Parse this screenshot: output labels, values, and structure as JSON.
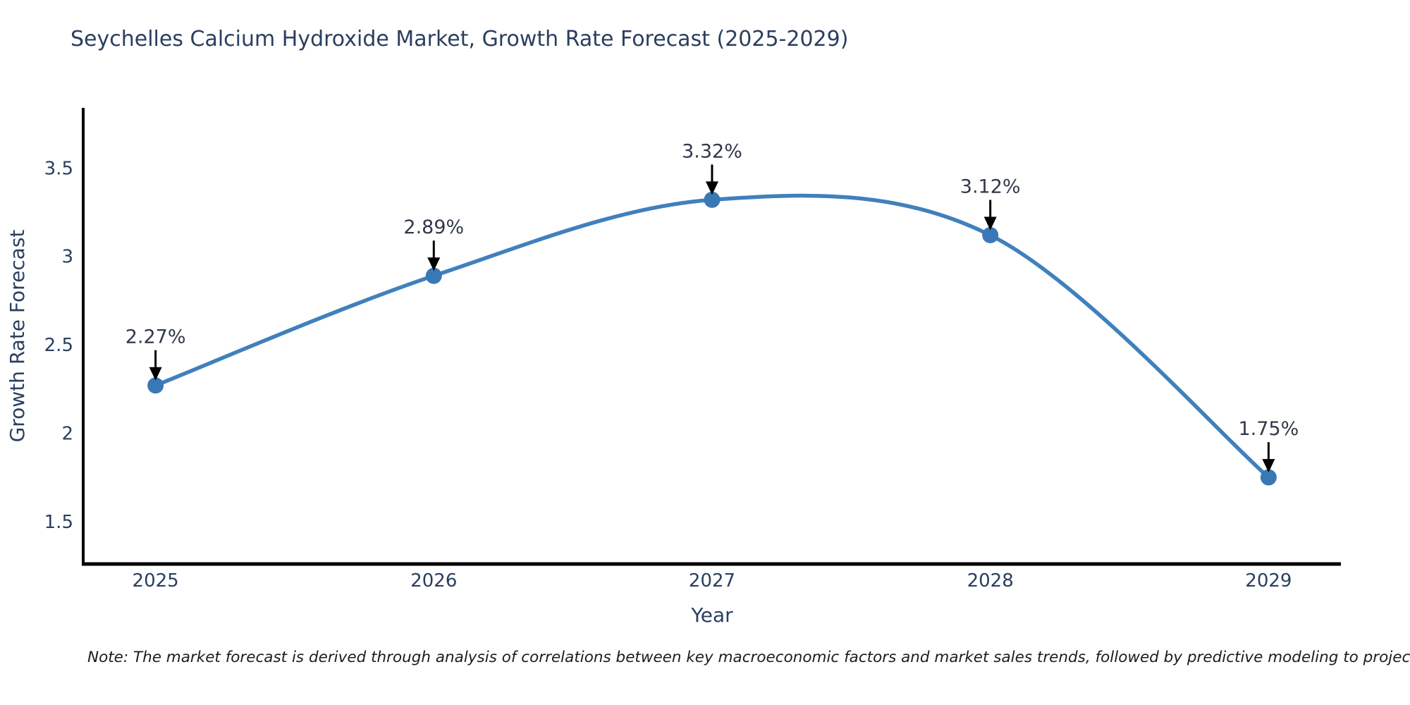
{
  "chart_data": {
    "type": "line",
    "title": "Seychelles Calcium Hydroxide Market, Growth Rate Forecast (2025-2029)",
    "xlabel": "Year",
    "ylabel": "Growth Rate Forecast",
    "x": [
      2025,
      2026,
      2027,
      2028,
      2029
    ],
    "values": [
      2.27,
      2.89,
      3.32,
      3.12,
      1.75
    ],
    "point_labels": [
      "2.27%",
      "2.89%",
      "3.32%",
      "3.12%",
      "1.75%"
    ],
    "xticks": [
      "2025",
      "2026",
      "2027",
      "2028",
      "2029"
    ],
    "yticks": [
      1.5,
      2,
      2.5,
      3,
      3.5
    ],
    "ytick_labels": [
      "1.5",
      "2",
      "2.5",
      "3",
      "3.5"
    ],
    "xlim": [
      2024.74,
      2029.26
    ],
    "ylim": [
      1.26,
      3.84
    ],
    "line_shape": "spline",
    "grid": false,
    "legend": "none",
    "line_color": "#4080bd",
    "marker_color": "#3a78b5",
    "arrow_color": "#000000",
    "text_color": "#2a3f5f",
    "annotation_color": "#30394a",
    "spine_color": "#000000",
    "note": "Note: The market forecast is derived through analysis of correlations between key macroeconomic factors and market sales trends, followed by predictive modeling to project future sales"
  }
}
